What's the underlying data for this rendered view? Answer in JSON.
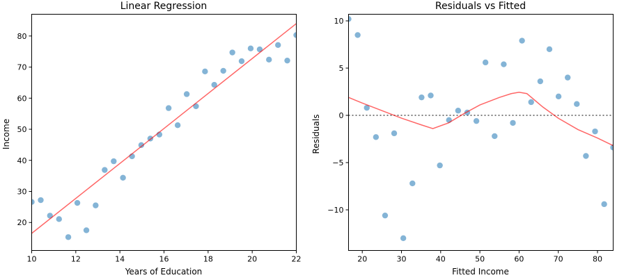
{
  "chart_data": [
    {
      "type": "scatter",
      "title": "Linear Regression",
      "xlabel": "Years of Education",
      "ylabel": "Income",
      "xlim": [
        10,
        22
      ],
      "ylim": [
        11,
        87
      ],
      "xticks": [
        10,
        12,
        14,
        16,
        18,
        20,
        22
      ],
      "yticks": [
        20,
        30,
        40,
        50,
        60,
        70,
        80
      ],
      "grid": false,
      "point_color": "#1f77b4",
      "line_color": "#ff0000",
      "points": {
        "x": [
          10.0,
          10.41,
          10.83,
          11.24,
          11.66,
          12.07,
          12.48,
          12.9,
          13.31,
          13.72,
          14.14,
          14.55,
          14.97,
          15.38,
          15.79,
          16.21,
          16.62,
          17.03,
          17.45,
          17.86,
          18.28,
          18.69,
          19.1,
          19.52,
          19.93,
          20.34,
          20.76,
          21.17,
          21.59,
          22.0
        ],
        "y": [
          26.6,
          27.2,
          22.2,
          21.1,
          15.3,
          26.3,
          17.5,
          25.5,
          36.9,
          39.7,
          34.4,
          41.3,
          44.9,
          47.0,
          48.3,
          56.8,
          51.3,
          61.3,
          57.4,
          68.6,
          64.3,
          68.8,
          74.7,
          71.9,
          76.0,
          75.7,
          72.4,
          77.1,
          72.1,
          80.3
        ]
      },
      "fit_line": {
        "x": [
          10,
          22
        ],
        "y": [
          16.5,
          84.0
        ]
      }
    },
    {
      "type": "scatter",
      "title": "Residuals vs Fitted",
      "xlabel": "Fitted Income",
      "ylabel": "Residuals",
      "xlim": [
        16.5,
        84.0
      ],
      "ylim": [
        -14.3,
        10.7
      ],
      "xticks": [
        20,
        30,
        40,
        50,
        60,
        70,
        80
      ],
      "yticks": [
        -10,
        -5,
        0,
        5,
        10
      ],
      "grid": false,
      "point_color": "#1f77b4",
      "line_color": "#ff0000",
      "reference_line": {
        "y": 0,
        "style": "dotted",
        "color": "#555555"
      },
      "points": {
        "x": [
          16.5,
          18.83,
          21.16,
          23.49,
          25.82,
          28.14,
          30.47,
          32.8,
          35.13,
          37.46,
          39.79,
          42.12,
          44.45,
          46.78,
          49.11,
          51.43,
          53.76,
          56.09,
          58.42,
          60.75,
          63.08,
          65.41,
          67.74,
          70.07,
          72.4,
          74.72,
          77.05,
          79.38,
          81.71,
          84.0
        ],
        "y": [
          10.2,
          8.5,
          0.8,
          -2.3,
          -10.6,
          -1.9,
          -13.0,
          -7.2,
          1.9,
          2.1,
          -5.3,
          -0.5,
          0.5,
          0.3,
          -0.6,
          5.6,
          -2.2,
          5.4,
          -0.8,
          7.9,
          1.4,
          3.6,
          7.0,
          2.0,
          4.0,
          1.2,
          -4.3,
          -1.7,
          -9.4,
          -3.4
        ]
      },
      "smooth_line": {
        "x": [
          16.5,
          20,
          25,
          30,
          35,
          38,
          42,
          46,
          50,
          55,
          58,
          60,
          62,
          64,
          66,
          70,
          75,
          80,
          84
        ],
        "y": [
          1.9,
          1.3,
          0.5,
          -0.3,
          -1.0,
          -1.4,
          -0.8,
          0.2,
          1.1,
          1.9,
          2.3,
          2.45,
          2.3,
          1.6,
          0.9,
          -0.3,
          -1.5,
          -2.4,
          -3.2
        ]
      }
    }
  ]
}
